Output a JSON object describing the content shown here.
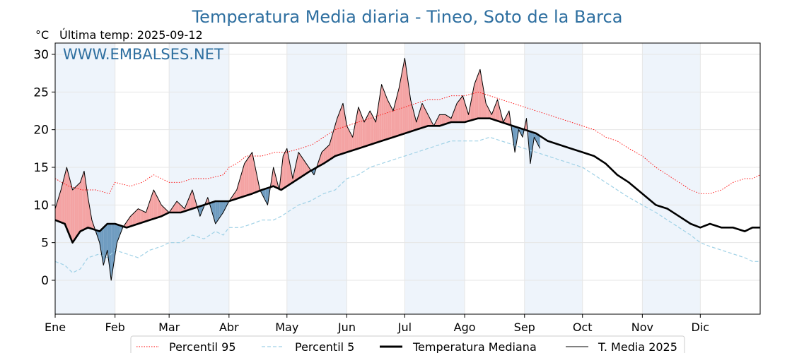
{
  "header": {
    "title": "Temperatura Media diaria - Tineo, Soto de la Barca",
    "unit_label": "°C",
    "last_temp_label": "Última temp: 2025-09-12",
    "watermark": "WWW.EMBALSES.NET"
  },
  "colors": {
    "title": "#2e6fa0",
    "p95": "#ff0000",
    "p5": "#9fd1e6",
    "median": "#000000",
    "current": "#000000",
    "above_fill": "#f4a3a3",
    "below_fill": "#6f9cc0",
    "band": "#eef4fb"
  },
  "chart_data": {
    "type": "line",
    "title": "Temperatura Media diaria - Tineo, Soto de la Barca",
    "ylabel": "°C",
    "xlim": [
      1,
      366
    ],
    "ylim": [
      -4.5,
      31.5
    ],
    "yticks": [
      0,
      5,
      10,
      15,
      20,
      25,
      30
    ],
    "xticks": [
      {
        "label": "Ene",
        "day": 1
      },
      {
        "label": "Feb",
        "day": 32
      },
      {
        "label": "Mar",
        "day": 60
      },
      {
        "label": "Abr",
        "day": 91
      },
      {
        "label": "May",
        "day": 121
      },
      {
        "label": "Jun",
        "day": 152
      },
      {
        "label": "Jul",
        "day": 182
      },
      {
        "label": "Ago",
        "day": 213
      },
      {
        "label": "Sep",
        "day": 244
      },
      {
        "label": "Oct",
        "day": 274
      },
      {
        "label": "Nov",
        "day": 305
      },
      {
        "label": "Dic",
        "day": 335
      }
    ],
    "legend_position": "bottom",
    "series": [
      {
        "name": "Percentil 95",
        "style": "dotted-red",
        "points": [
          [
            1,
            13.5
          ],
          [
            8,
            12.5
          ],
          [
            15,
            12.0
          ],
          [
            22,
            12.0
          ],
          [
            29,
            11.5
          ],
          [
            32,
            13.0
          ],
          [
            40,
            12.5
          ],
          [
            46,
            13.0
          ],
          [
            52,
            14.0
          ],
          [
            60,
            13.0
          ],
          [
            66,
            13.0
          ],
          [
            72,
            13.5
          ],
          [
            80,
            13.5
          ],
          [
            88,
            14.0
          ],
          [
            91,
            15.0
          ],
          [
            95,
            15.5
          ],
          [
            100,
            16.5
          ],
          [
            108,
            16.5
          ],
          [
            115,
            17.0
          ],
          [
            121,
            17.0
          ],
          [
            128,
            17.5
          ],
          [
            134,
            18.0
          ],
          [
            140,
            19.0
          ],
          [
            146,
            20.0
          ],
          [
            152,
            20.5
          ],
          [
            158,
            21.0
          ],
          [
            164,
            21.5
          ],
          [
            170,
            22.0
          ],
          [
            176,
            22.5
          ],
          [
            182,
            23.0
          ],
          [
            188,
            23.5
          ],
          [
            194,
            24.0
          ],
          [
            200,
            24.0
          ],
          [
            206,
            24.5
          ],
          [
            213,
            24.5
          ],
          [
            220,
            25.0
          ],
          [
            226,
            24.5
          ],
          [
            232,
            24.0
          ],
          [
            238,
            23.5
          ],
          [
            244,
            23.0
          ],
          [
            250,
            22.5
          ],
          [
            256,
            22.0
          ],
          [
            262,
            21.5
          ],
          [
            268,
            21.0
          ],
          [
            274,
            20.5
          ],
          [
            280,
            20.0
          ],
          [
            286,
            19.0
          ],
          [
            292,
            18.5
          ],
          [
            298,
            17.5
          ],
          [
            305,
            16.5
          ],
          [
            312,
            15.0
          ],
          [
            318,
            14.0
          ],
          [
            324,
            13.0
          ],
          [
            330,
            12.0
          ],
          [
            335,
            11.5
          ],
          [
            340,
            11.5
          ],
          [
            346,
            12.0
          ],
          [
            352,
            13.0
          ],
          [
            358,
            13.5
          ],
          [
            362,
            13.5
          ],
          [
            366,
            14.0
          ]
        ]
      },
      {
        "name": "Percentil 5",
        "style": "dashed-lightblue",
        "points": [
          [
            1,
            2.5
          ],
          [
            6,
            2.0
          ],
          [
            10,
            1.0
          ],
          [
            14,
            1.5
          ],
          [
            18,
            3.0
          ],
          [
            24,
            3.5
          ],
          [
            28,
            3.0
          ],
          [
            32,
            4.0
          ],
          [
            38,
            3.5
          ],
          [
            44,
            3.0
          ],
          [
            50,
            4.0
          ],
          [
            56,
            4.5
          ],
          [
            60,
            5.0
          ],
          [
            66,
            5.0
          ],
          [
            72,
            6.0
          ],
          [
            78,
            5.5
          ],
          [
            84,
            6.5
          ],
          [
            88,
            6.0
          ],
          [
            91,
            7.0
          ],
          [
            97,
            7.0
          ],
          [
            103,
            7.5
          ],
          [
            108,
            8.0
          ],
          [
            114,
            8.0
          ],
          [
            118,
            8.5
          ],
          [
            121,
            9.0
          ],
          [
            127,
            10.0
          ],
          [
            133,
            10.5
          ],
          [
            140,
            11.5
          ],
          [
            146,
            12.0
          ],
          [
            152,
            13.5
          ],
          [
            158,
            14.0
          ],
          [
            164,
            15.0
          ],
          [
            170,
            15.5
          ],
          [
            176,
            16.0
          ],
          [
            182,
            16.5
          ],
          [
            188,
            17.0
          ],
          [
            194,
            17.5
          ],
          [
            200,
            18.0
          ],
          [
            206,
            18.5
          ],
          [
            213,
            18.5
          ],
          [
            220,
            18.5
          ],
          [
            226,
            19.0
          ],
          [
            232,
            18.5
          ],
          [
            238,
            18.0
          ],
          [
            244,
            17.5
          ],
          [
            250,
            17.0
          ],
          [
            256,
            16.5
          ],
          [
            262,
            16.0
          ],
          [
            268,
            15.5
          ],
          [
            274,
            15.0
          ],
          [
            280,
            14.0
          ],
          [
            286,
            13.0
          ],
          [
            292,
            12.0
          ],
          [
            298,
            11.0
          ],
          [
            305,
            10.0
          ],
          [
            312,
            9.0
          ],
          [
            318,
            8.0
          ],
          [
            324,
            7.0
          ],
          [
            330,
            6.0
          ],
          [
            335,
            5.0
          ],
          [
            340,
            4.5
          ],
          [
            346,
            4.0
          ],
          [
            352,
            3.5
          ],
          [
            358,
            3.0
          ],
          [
            362,
            2.5
          ],
          [
            366,
            2.5
          ]
        ]
      },
      {
        "name": "Temperatura Mediana",
        "style": "thick-black",
        "points": [
          [
            1,
            8.0
          ],
          [
            6,
            7.5
          ],
          [
            10,
            5.0
          ],
          [
            14,
            6.5
          ],
          [
            18,
            7.0
          ],
          [
            24,
            6.5
          ],
          [
            28,
            7.5
          ],
          [
            32,
            7.5
          ],
          [
            38,
            7.0
          ],
          [
            44,
            7.5
          ],
          [
            50,
            8.0
          ],
          [
            56,
            8.5
          ],
          [
            60,
            9.0
          ],
          [
            66,
            9.0
          ],
          [
            72,
            9.5
          ],
          [
            78,
            10.0
          ],
          [
            84,
            10.5
          ],
          [
            88,
            10.5
          ],
          [
            91,
            10.5
          ],
          [
            97,
            11.0
          ],
          [
            103,
            11.5
          ],
          [
            108,
            12.0
          ],
          [
            114,
            12.5
          ],
          [
            118,
            12.0
          ],
          [
            121,
            12.5
          ],
          [
            127,
            13.5
          ],
          [
            133,
            14.5
          ],
          [
            140,
            15.5
          ],
          [
            146,
            16.5
          ],
          [
            152,
            17.0
          ],
          [
            158,
            17.5
          ],
          [
            164,
            18.0
          ],
          [
            170,
            18.5
          ],
          [
            176,
            19.0
          ],
          [
            182,
            19.5
          ],
          [
            188,
            20.0
          ],
          [
            194,
            20.5
          ],
          [
            200,
            20.5
          ],
          [
            206,
            21.0
          ],
          [
            213,
            21.0
          ],
          [
            220,
            21.5
          ],
          [
            226,
            21.5
          ],
          [
            232,
            21.0
          ],
          [
            238,
            20.5
          ],
          [
            244,
            20.0
          ],
          [
            250,
            19.5
          ],
          [
            256,
            18.5
          ],
          [
            262,
            18.0
          ],
          [
            268,
            17.5
          ],
          [
            274,
            17.0
          ],
          [
            280,
            16.5
          ],
          [
            286,
            15.5
          ],
          [
            292,
            14.0
          ],
          [
            298,
            13.0
          ],
          [
            305,
            11.5
          ],
          [
            312,
            10.0
          ],
          [
            318,
            9.5
          ],
          [
            324,
            8.5
          ],
          [
            330,
            7.5
          ],
          [
            335,
            7.0
          ],
          [
            340,
            7.5
          ],
          [
            346,
            7.0
          ],
          [
            352,
            7.0
          ],
          [
            358,
            6.5
          ],
          [
            362,
            7.0
          ],
          [
            366,
            7.0
          ]
        ]
      },
      {
        "name": "T. Media 2025",
        "style": "thin-black",
        "points": [
          [
            1,
            9.5
          ],
          [
            4,
            12.0
          ],
          [
            7,
            15.0
          ],
          [
            10,
            12.0
          ],
          [
            14,
            13.0
          ],
          [
            16,
            14.5
          ],
          [
            18,
            11.0
          ],
          [
            20,
            8.0
          ],
          [
            24,
            5.0
          ],
          [
            26,
            2.0
          ],
          [
            28,
            4.0
          ],
          [
            30,
            0.0
          ],
          [
            33,
            5.0
          ],
          [
            36,
            7.0
          ],
          [
            40,
            8.5
          ],
          [
            44,
            9.5
          ],
          [
            48,
            9.0
          ],
          [
            52,
            12.0
          ],
          [
            56,
            10.0
          ],
          [
            60,
            9.0
          ],
          [
            64,
            10.5
          ],
          [
            68,
            9.5
          ],
          [
            72,
            12.0
          ],
          [
            76,
            8.5
          ],
          [
            80,
            11.0
          ],
          [
            84,
            7.5
          ],
          [
            88,
            9.0
          ],
          [
            91,
            10.5
          ],
          [
            95,
            12.0
          ],
          [
            99,
            15.5
          ],
          [
            103,
            17.0
          ],
          [
            107,
            12.0
          ],
          [
            111,
            10.0
          ],
          [
            114,
            15.0
          ],
          [
            117,
            12.0
          ],
          [
            119,
            16.5
          ],
          [
            121,
            17.5
          ],
          [
            124,
            13.5
          ],
          [
            127,
            17.0
          ],
          [
            131,
            15.5
          ],
          [
            135,
            14.0
          ],
          [
            139,
            17.0
          ],
          [
            143,
            18.0
          ],
          [
            147,
            21.5
          ],
          [
            150,
            23.5
          ],
          [
            152,
            20.5
          ],
          [
            155,
            19.0
          ],
          [
            158,
            23.0
          ],
          [
            161,
            21.0
          ],
          [
            164,
            22.5
          ],
          [
            167,
            21.0
          ],
          [
            170,
            26.0
          ],
          [
            173,
            24.0
          ],
          [
            176,
            22.5
          ],
          [
            179,
            25.5
          ],
          [
            182,
            29.5
          ],
          [
            185,
            24.0
          ],
          [
            188,
            21.0
          ],
          [
            191,
            23.5
          ],
          [
            194,
            22.0
          ],
          [
            197,
            20.5
          ],
          [
            200,
            22.0
          ],
          [
            203,
            22.0
          ],
          [
            206,
            21.5
          ],
          [
            209,
            23.5
          ],
          [
            212,
            24.5
          ],
          [
            215,
            22.0
          ],
          [
            218,
            26.0
          ],
          [
            221,
            28.0
          ],
          [
            224,
            23.5
          ],
          [
            227,
            22.0
          ],
          [
            230,
            24.0
          ],
          [
            233,
            21.0
          ],
          [
            236,
            22.5
          ],
          [
            239,
            17.0
          ],
          [
            241,
            20.0
          ],
          [
            243,
            19.0
          ],
          [
            245,
            21.5
          ],
          [
            247,
            15.5
          ],
          [
            249,
            19.0
          ],
          [
            252,
            17.5
          ]
        ]
      }
    ]
  },
  "legend": {
    "items": [
      {
        "label": "Percentil 95",
        "style": "dotted-red"
      },
      {
        "label": "Percentil 5",
        "style": "dashed-lightblue"
      },
      {
        "label": "Temperatura Mediana",
        "style": "thick-black"
      },
      {
        "label": "T. Media 2025",
        "style": "thin-black"
      }
    ]
  }
}
